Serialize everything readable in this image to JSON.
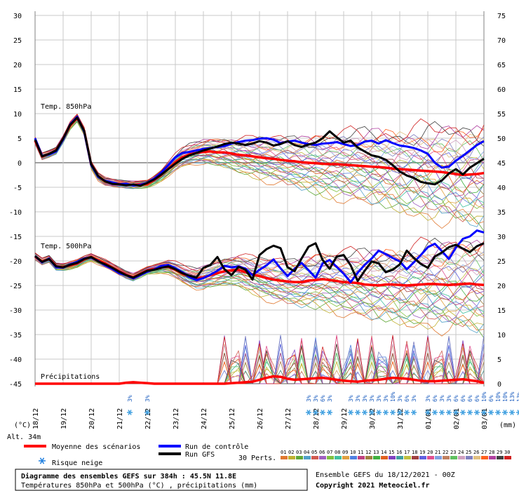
{
  "chart_data": {
    "type": "line",
    "title": "Diagramme des ensembles GEFS sur 384h : 45.5N 11.8E",
    "subtitle": "Températures 850hPa et 500hPa (°C) , précipitations (mm)",
    "left_unit": "(°C)",
    "right_unit": "(mm)",
    "altitude": "Alt. 34m",
    "run_info": "Ensemble GEFS du 18/12/2021 - 00Z",
    "copyright": "Copyright 2021 Meteociel.fr",
    "panel_labels": {
      "t850": "Temp. 850hPa",
      "t500": "Temp. 500hPa",
      "precip": "Précipitations"
    },
    "y_left": {
      "ticks": [
        30,
        25,
        20,
        15,
        10,
        5,
        0,
        -5,
        -10,
        -15,
        -20,
        -25,
        -30,
        -35,
        -40,
        -45
      ],
      "ylim": [
        -45,
        30
      ]
    },
    "y_right": {
      "ticks": [
        75,
        70,
        65,
        60,
        55,
        50,
        45,
        40,
        35,
        30,
        25,
        20,
        15,
        10,
        5,
        0
      ],
      "ylim": [
        0,
        75
      ]
    },
    "x_dates": [
      "18/12",
      "19/12",
      "20/12",
      "21/12",
      "22/12",
      "23/12",
      "24/12",
      "25/12",
      "26/12",
      "27/12",
      "28/12",
      "29/12",
      "30/12",
      "31/12",
      "01/01",
      "02/01",
      "03/01"
    ],
    "x": [
      0,
      6,
      12,
      18,
      24,
      30,
      36,
      42,
      48,
      54,
      60,
      66,
      72,
      78,
      84,
      90,
      96,
      102,
      108,
      114,
      120,
      126,
      132,
      138,
      144,
      150,
      156,
      162,
      168,
      174,
      180,
      186,
      192,
      198,
      204,
      210,
      216,
      222,
      228,
      234,
      240,
      246,
      252,
      258,
      264,
      270,
      276,
      282,
      288,
      294,
      300,
      306,
      312,
      318,
      324,
      330,
      336,
      342,
      348,
      354,
      360,
      366,
      372,
      378,
      384
    ],
    "series": [
      {
        "name": "Moyenne des scénarios",
        "color": "#ff0000",
        "panel": "t850",
        "values": [
          4.5,
          1.3,
          1.8,
          2.5,
          4.8,
          7.6,
          9.1,
          6.5,
          -0.4,
          -2.8,
          -3.8,
          -4.1,
          -4.3,
          -4.4,
          -4.5,
          -4.4,
          -4.3,
          -3.5,
          -2.5,
          -1.2,
          0.1,
          1.1,
          1.7,
          2.0,
          2.2,
          2.3,
          2.1,
          2.1,
          1.9,
          1.6,
          1.5,
          1.3,
          1.1,
          0.9,
          0.8,
          0.6,
          0.4,
          0.3,
          0.1,
          0.0,
          -0.1,
          -0.2,
          -0.3,
          -0.3,
          -0.4,
          -0.5,
          -0.6,
          -0.7,
          -0.8,
          -0.9,
          -1.0,
          -1.2,
          -1.3,
          -1.4,
          -1.5,
          -1.6,
          -1.7,
          -1.8,
          -1.9,
          -2.1,
          -2.3,
          -2.5,
          -2.4,
          -2.3,
          -2.1
        ]
      },
      {
        "name": "Run de contrôle",
        "color": "#0000ff",
        "panel": "t850",
        "values": [
          5.0,
          1.4,
          1.7,
          2.3,
          4.7,
          7.8,
          9.4,
          6.3,
          -0.5,
          -2.9,
          -3.7,
          -4.0,
          -4.4,
          -4.3,
          -4.6,
          -4.5,
          -4.1,
          -3.2,
          -2.0,
          -0.5,
          1.1,
          2.0,
          2.2,
          2.5,
          2.8,
          3.0,
          3.2,
          3.4,
          3.9,
          4.2,
          4.5,
          4.6,
          4.9,
          5.0,
          4.7,
          4.0,
          4.3,
          4.5,
          4.1,
          3.8,
          3.6,
          3.9,
          4.0,
          4.2,
          3.8,
          3.4,
          3.6,
          4.3,
          4.5,
          3.9,
          4.6,
          4.0,
          3.5,
          3.3,
          3.0,
          2.5,
          1.8,
          0.0,
          -1.0,
          -0.8,
          0.4,
          1.4,
          2.5,
          3.6,
          4.4
        ]
      },
      {
        "name": "Run GFS",
        "color": "#000000",
        "panel": "t850",
        "values": [
          4.7,
          1.3,
          1.8,
          2.5,
          4.9,
          7.7,
          9.2,
          6.5,
          -0.3,
          -2.7,
          -3.8,
          -4.3,
          -4.4,
          -4.6,
          -4.4,
          -4.7,
          -4.1,
          -3.4,
          -2.4,
          -1.3,
          -0.2,
          0.8,
          1.5,
          2.0,
          2.5,
          2.9,
          3.3,
          3.8,
          4.1,
          3.9,
          3.6,
          3.9,
          4.4,
          4.1,
          3.5,
          3.8,
          4.4,
          3.6,
          3.2,
          3.7,
          4.1,
          5.0,
          6.4,
          5.2,
          4.1,
          4.5,
          3.1,
          2.3,
          1.5,
          1.2,
          0.6,
          -0.5,
          -1.8,
          -2.6,
          -3.1,
          -3.9,
          -4.2,
          -4.4,
          -3.6,
          -2.2,
          -1.3,
          -2.4,
          -1.0,
          -0.1,
          0.8
        ]
      },
      {
        "name": "Moyenne des scénarios",
        "color": "#ff0000",
        "panel": "t500",
        "values": [
          -19.1,
          -20.1,
          -19.6,
          -21.1,
          -21.2,
          -20.9,
          -20.5,
          -19.7,
          -19.2,
          -19.9,
          -20.5,
          -21.3,
          -22.1,
          -22.8,
          -23.3,
          -22.6,
          -21.9,
          -21.6,
          -21.3,
          -21.2,
          -21.8,
          -22.6,
          -23.2,
          -23.6,
          -23.4,
          -22.9,
          -22.5,
          -22.1,
          -21.9,
          -21.8,
          -22.3,
          -22.7,
          -23.1,
          -23.5,
          -23.8,
          -24.0,
          -24.2,
          -24.3,
          -24.3,
          -24.0,
          -23.9,
          -23.7,
          -23.9,
          -24.1,
          -24.3,
          -24.4,
          -24.5,
          -24.8,
          -24.9,
          -25.0,
          -24.8,
          -24.8,
          -24.9,
          -25.0,
          -24.9,
          -24.8,
          -24.7,
          -24.7,
          -24.8,
          -24.9,
          -24.8,
          -24.7,
          -24.6,
          -24.8,
          -24.9
        ]
      },
      {
        "name": "Run de contrôle",
        "color": "#0000ff",
        "panel": "t500",
        "values": [
          -19.0,
          -20.3,
          -19.5,
          -21.3,
          -21.4,
          -20.7,
          -20.2,
          -19.5,
          -19.3,
          -20.0,
          -20.9,
          -21.6,
          -22.5,
          -22.9,
          -23.6,
          -22.9,
          -22.2,
          -21.7,
          -21.0,
          -20.8,
          -21.5,
          -22.3,
          -23.3,
          -23.9,
          -23.5,
          -22.8,
          -22.0,
          -21.0,
          -21.3,
          -21.1,
          -21.6,
          -22.9,
          -21.8,
          -20.9,
          -19.7,
          -21.5,
          -23.1,
          -21.6,
          -20.4,
          -21.9,
          -23.4,
          -20.5,
          -19.8,
          -21.2,
          -22.6,
          -24.3,
          -22.4,
          -20.8,
          -19.5,
          -17.9,
          -18.6,
          -19.4,
          -20.1,
          -21.7,
          -20.3,
          -18.8,
          -17.2,
          -16.5,
          -18.0,
          -19.6,
          -17.3,
          -15.5,
          -15.0,
          -13.8,
          -14.2
        ]
      },
      {
        "name": "Run GFS",
        "color": "#000000",
        "panel": "t500",
        "values": [
          -19.0,
          -20.2,
          -19.6,
          -21.1,
          -21.3,
          -20.8,
          -20.4,
          -19.6,
          -19.2,
          -20.1,
          -20.7,
          -21.4,
          -22.2,
          -22.9,
          -23.4,
          -22.7,
          -22.0,
          -21.8,
          -21.4,
          -21.1,
          -21.7,
          -22.5,
          -23.0,
          -23.4,
          -21.4,
          -20.8,
          -19.2,
          -21.7,
          -22.9,
          -21.2,
          -21.8,
          -23.8,
          -18.8,
          -17.6,
          -16.9,
          -17.4,
          -21.3,
          -22.1,
          -19.5,
          -17.1,
          -16.4,
          -19.8,
          -21.6,
          -19.1,
          -18.8,
          -20.9,
          -24.1,
          -22.0,
          -20.1,
          -20.5,
          -22.3,
          -21.8,
          -20.7,
          -17.9,
          -19.4,
          -20.6,
          -21.4,
          -19.1,
          -18.3,
          -17.2,
          -16.7,
          -17.5,
          -18.2,
          -17.0,
          -16.4
        ]
      },
      {
        "name": "Moyenne des scénarios",
        "color": "#ff0000",
        "panel": "precip",
        "values": [
          0,
          0,
          0,
          0,
          0,
          0,
          0,
          0,
          0,
          0,
          0,
          0,
          0,
          0.2,
          0.3,
          0.2,
          0.1,
          0,
          0,
          0,
          0,
          0,
          0,
          0,
          0,
          0,
          0,
          0,
          0.1,
          0.2,
          0.3,
          0.4,
          0.8,
          1.2,
          1.5,
          1.4,
          1.0,
          0.8,
          0.9,
          1.0,
          1.1,
          1.2,
          1.0,
          0.8,
          0.6,
          0.5,
          0.4,
          0.6,
          0.7,
          0.8,
          1.0,
          1.2,
          1.1,
          1.0,
          0.8,
          0.6,
          0.5,
          0.5,
          0.6,
          0.7,
          0.8,
          0.9,
          0.7,
          0.5,
          0.2
        ]
      }
    ],
    "ensemble": {
      "label": "30 Perts.",
      "members": [
        "01",
        "02",
        "03",
        "04",
        "05",
        "06",
        "07",
        "08",
        "09",
        "10",
        "11",
        "12",
        "13",
        "14",
        "15",
        "16",
        "17",
        "18",
        "19",
        "20",
        "21",
        "22",
        "23",
        "24",
        "25",
        "26",
        "27",
        "28",
        "29",
        "30"
      ],
      "colors": [
        "#e07830",
        "#c0b030",
        "#60a838",
        "#50a0c8",
        "#d05a50",
        "#a060c0",
        "#80c040",
        "#40c0a0",
        "#e0a040",
        "#5080e0",
        "#c04080",
        "#a08040",
        "#40b040",
        "#e06020",
        "#8040c0",
        "#40a0a0",
        "#c0c040",
        "#a04040",
        "#6060e0",
        "#e05090",
        "#80a0e0",
        "#c08060",
        "#60c060",
        "#d0a0c0",
        "#8080c0",
        "#e0c080",
        "#ff6020",
        "#b040a0",
        "#404040",
        "#d02020"
      ]
    },
    "snow_labels": [
      {
        "t": 81,
        "text": "3%"
      },
      {
        "t": 96,
        "text": "3%"
      },
      {
        "t": 234,
        "text": "3%"
      },
      {
        "t": 240,
        "text": "3%"
      },
      {
        "t": 246,
        "text": "6%"
      },
      {
        "t": 252,
        "text": "3%"
      },
      {
        "t": 270,
        "text": "3%"
      },
      {
        "t": 276,
        "text": "3%"
      },
      {
        "t": 282,
        "text": "3%"
      },
      {
        "t": 288,
        "text": "3%"
      },
      {
        "t": 294,
        "text": "3%"
      },
      {
        "t": 300,
        "text": "3%"
      },
      {
        "t": 306,
        "text": "10%"
      },
      {
        "t": 312,
        "text": "3%"
      },
      {
        "t": 318,
        "text": "6%"
      },
      {
        "t": 324,
        "text": "3%"
      },
      {
        "t": 336,
        "text": "3%"
      },
      {
        "t": 342,
        "text": "6%"
      },
      {
        "t": 348,
        "text": "3%"
      },
      {
        "t": 354,
        "text": "3%"
      },
      {
        "t": 360,
        "text": "6%"
      },
      {
        "t": 366,
        "text": "6%"
      },
      {
        "t": 372,
        "text": "6%"
      },
      {
        "t": 378,
        "text": "6%"
      },
      {
        "t": 384,
        "text": "10%"
      },
      {
        "t": 390,
        "text": "6%"
      },
      {
        "t": 396,
        "text": "10%"
      },
      {
        "t": 402,
        "text": "10%"
      },
      {
        "t": 408,
        "text": "13%"
      },
      {
        "t": 414,
        "text": "13%"
      }
    ],
    "legend": [
      {
        "label": "Moyenne des scénarios",
        "color": "#ff0000"
      },
      {
        "label": "Run de contrôle",
        "color": "#0000ff"
      },
      {
        "label": "Run GFS",
        "color": "#000000"
      },
      {
        "label": "Risque neige",
        "color": "#2080e0"
      }
    ],
    "grid": true
  }
}
